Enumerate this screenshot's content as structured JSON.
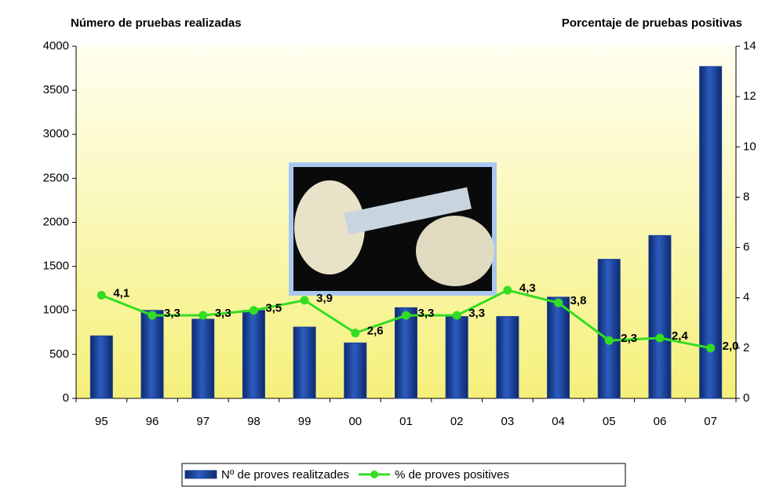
{
  "chart_data": {
    "type": "bar-line",
    "y_title": "Número de pruebas realizadas",
    "y2_title": "Porcentaje de pruebas positivas",
    "categories": [
      "95",
      "96",
      "97",
      "98",
      "99",
      "00",
      "01",
      "02",
      "03",
      "04",
      "05",
      "06",
      "07"
    ],
    "series": [
      {
        "name": "Nº de proves realitzades",
        "type": "bar",
        "color": "#1c3f94",
        "values": [
          710,
          1000,
          900,
          1000,
          810,
          630,
          1030,
          930,
          930,
          1150,
          1580,
          1850,
          3770
        ]
      },
      {
        "name": "% de proves positives",
        "type": "line",
        "color": "#33dd22",
        "axis": "y2",
        "values": [
          4.1,
          3.3,
          3.3,
          3.5,
          3.9,
          2.6,
          3.3,
          3.3,
          4.3,
          3.8,
          2.3,
          2.4,
          2.0
        ],
        "value_labels": [
          "4,1",
          "3,3",
          "3,3",
          "3,5",
          "3,9",
          "2,6",
          "3,3",
          "3,3",
          "4,3",
          "3,8",
          "2,3",
          "2,4",
          "2,0"
        ]
      }
    ],
    "ylim": [
      0,
      4000
    ],
    "yticks": [
      0,
      500,
      1000,
      1500,
      2000,
      2500,
      3000,
      3500,
      4000
    ],
    "y2lim": [
      0,
      14
    ],
    "y2ticks": [
      0,
      2,
      4,
      6,
      8,
      10,
      12,
      14
    ],
    "legend": "bottom"
  }
}
